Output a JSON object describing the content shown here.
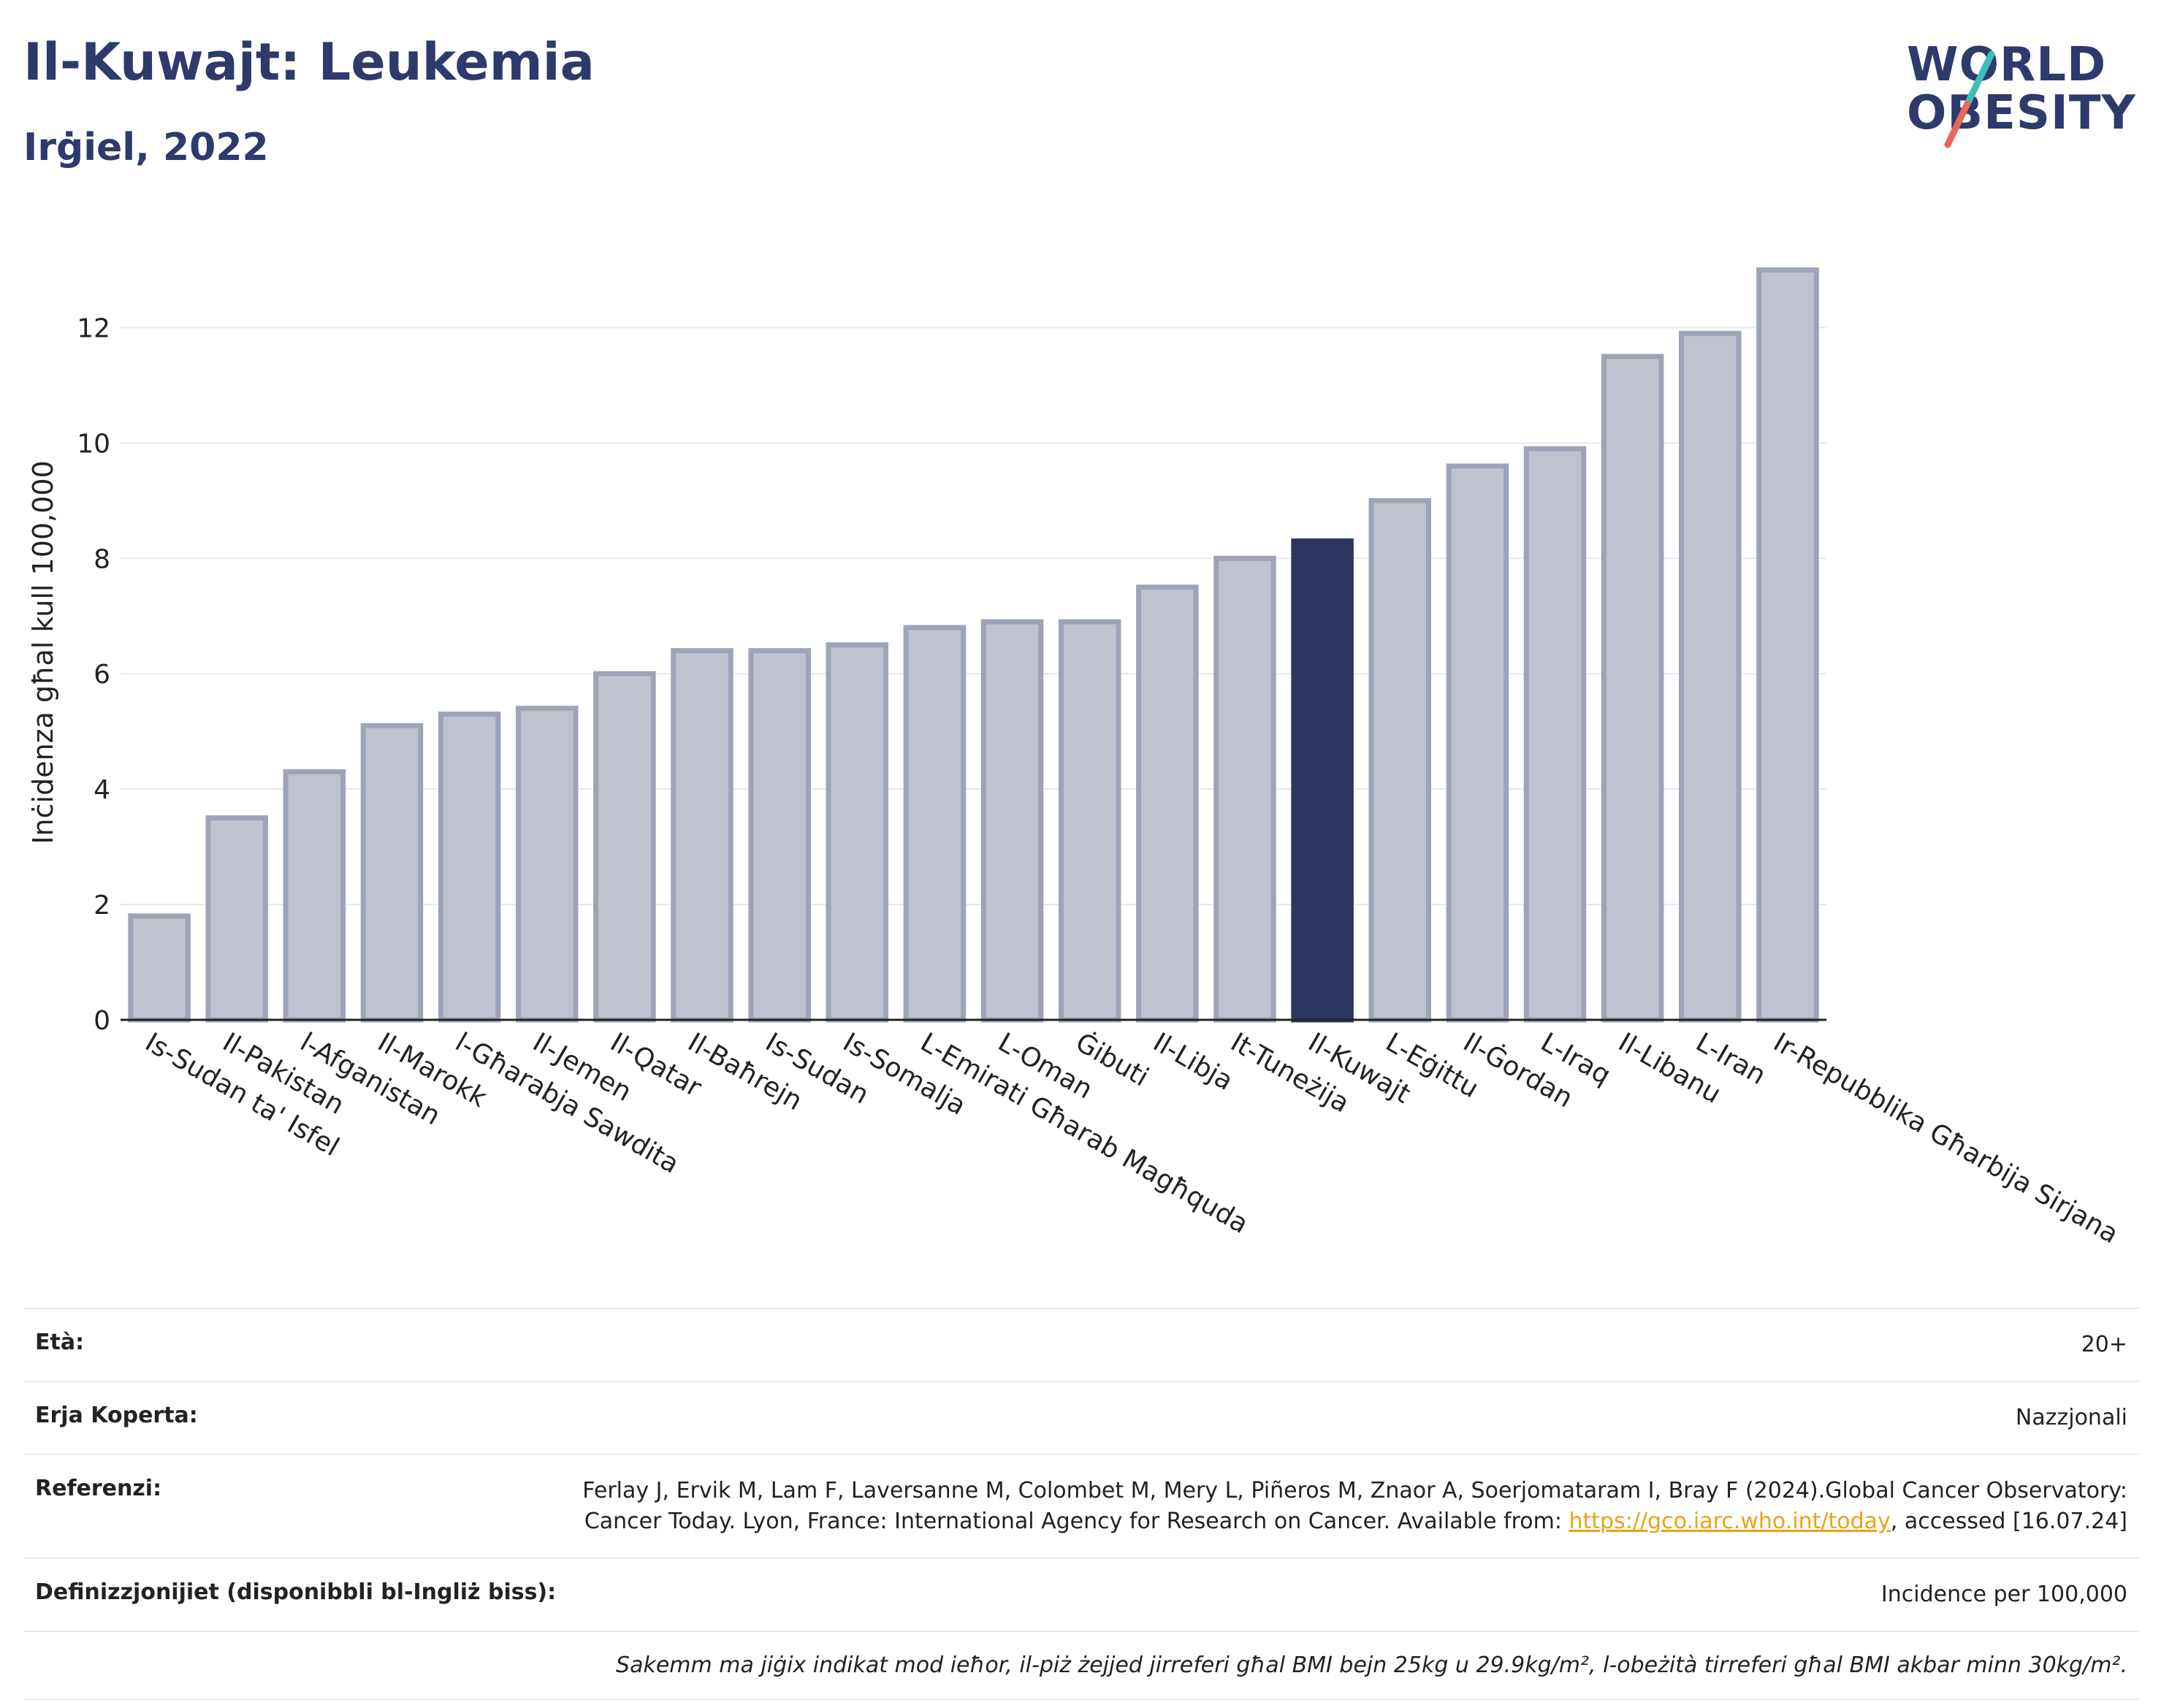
{
  "header": {
    "title": "Il-Kuwajt: Leukemia",
    "subtitle": "Irġiel, 2022"
  },
  "logo": {
    "line1": "WORLD",
    "line2": "OBESITY"
  },
  "colors": {
    "bar": "#bfc2cf",
    "bar_stroke": "#9ea3b8",
    "highlight": "#2b355f",
    "title": "#2d3a6b",
    "grid": "#e6e8ee",
    "link": "#e8a317"
  },
  "chart_data": {
    "type": "bar",
    "ylabel": "Inċidenza għal kull 100,000",
    "ylim": [
      0,
      13.5
    ],
    "yticks": [
      0,
      2,
      4,
      6,
      8,
      10,
      12
    ],
    "grid": true,
    "highlight": "Il-Kuwajt",
    "categories": [
      "Is-Sudan ta' Isfel",
      "Il-Pakistan",
      "l-Afganistan",
      "Il-Marokk",
      "l-Għarabja Sawdita",
      "Il-Jemen",
      "Il-Qatar",
      "Il-Baħrejn",
      "Is-Sudan",
      "Is-Somalja",
      "L-Emirati Għarab Magħquda",
      "L-Oman",
      "Ġibuti",
      "Il-Libja",
      "It-Tuneżija",
      "Il-Kuwajt",
      "L-Eġittu",
      "Il-Ġordan",
      "L-Iraq",
      "Il-Libanu",
      "L-Iran",
      "Ir-Repubblika Għarbija Sirjana"
    ],
    "values": [
      1.8,
      3.5,
      4.3,
      5.1,
      5.3,
      5.4,
      6.0,
      6.4,
      6.4,
      6.5,
      6.8,
      6.9,
      6.9,
      7.5,
      8.0,
      8.3,
      9.0,
      9.6,
      9.9,
      11.5,
      11.9,
      13.0
    ]
  },
  "meta": {
    "age_label": "Età:",
    "age_value": "20+",
    "area_label": "Erja Koperta:",
    "area_value": "Nazzjonali",
    "ref_label": "Referenzi:",
    "ref_text1": "Ferlay J, Ervik M, Lam F, Laversanne M, Colombet M, Mery L, Piñeros M, Znaor A, Soerjomataram I, Bray F (2024).Global Cancer Observatory: Cancer Today. Lyon, France: International Agency for Research on Cancer. Available from: ",
    "ref_link": "https://gco.iarc.who.int/today",
    "ref_text2": ", accessed [16.07.24]",
    "def_label": "Definizzjonijiet (disponibbli bl-Ingliż biss):",
    "def_value": "Incidence per 100,000",
    "note": "Sakemm ma jiġix indikat mod ieħor, il-piż żejjed jirreferi għal BMI bejn 25kg u 29.9kg/m², l-obeżità tirreferi għal BMI akbar minn 30kg/m²."
  }
}
